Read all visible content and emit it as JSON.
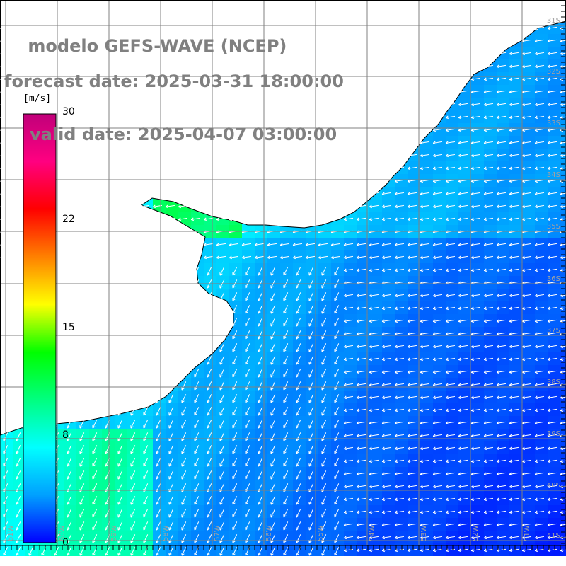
{
  "title": {
    "line1": "modelo GEFS-WAVE (NCEP)",
    "line2": "forecast date: 2025-03-31 18:00:00",
    "line3": "valid date: 2025-04-07 03:00:00"
  },
  "colorbar": {
    "unit": "[m/s]",
    "ticks": [
      "30",
      "22",
      "15",
      "8",
      "0"
    ],
    "tick_values": [
      30,
      22,
      15,
      8,
      0
    ],
    "range": [
      0,
      30
    ],
    "colors": [
      "#0000ff",
      "#00a0ff",
      "#00ffff",
      "#00ff80",
      "#00ff00",
      "#ffff00",
      "#ff8000",
      "#ff0000",
      "#ff0080",
      "#c0007a"
    ]
  },
  "map": {
    "lat_labels": [
      "31S",
      "32S",
      "33S",
      "34S",
      "35S",
      "36S",
      "37S",
      "38S",
      "39S",
      "40S",
      "41S"
    ],
    "lon_labels": [
      "61W",
      "60W",
      "59W",
      "58W",
      "57W",
      "56W",
      "55W",
      "54W",
      "53W",
      "52W",
      "51W"
    ],
    "grid_lon_range": [
      -61,
      -51
    ],
    "grid_lat_range": [
      -41,
      -31
    ],
    "land_color": "#ffffff",
    "grid_color": "#808080",
    "arrow_color": "#ffffff"
  }
}
